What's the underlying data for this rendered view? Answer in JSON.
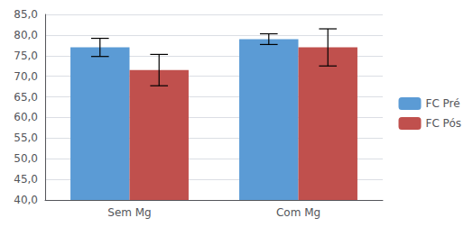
{
  "chart_data": {
    "type": "bar",
    "categories": [
      "Sem Mg",
      "Com Mg"
    ],
    "series": [
      {
        "name": "FC Pré",
        "color": "#5B9BD5",
        "values": [
          77.0,
          79.0
        ],
        "errors": [
          2.2,
          1.3
        ]
      },
      {
        "name": "FC Pós",
        "color": "#C0504D",
        "values": [
          71.5,
          77.0
        ],
        "errors": [
          3.8,
          4.5
        ]
      }
    ],
    "ylim": [
      40.0,
      85.0
    ],
    "yticks": [
      {
        "value": 40.0,
        "label": "40,0"
      },
      {
        "value": 45.0,
        "label": "45,0"
      },
      {
        "value": 50.0,
        "label": "50,0"
      },
      {
        "value": 55.0,
        "label": "55,0"
      },
      {
        "value": 60.0,
        "label": "60,0"
      },
      {
        "value": 65.0,
        "label": "65,0"
      },
      {
        "value": 70.0,
        "label": "70,0"
      },
      {
        "value": 75.0,
        "label": "75,0"
      },
      {
        "value": 80.0,
        "label": "80,0"
      },
      {
        "value": 85.0,
        "label": "85,0"
      }
    ],
    "grid": true,
    "legend": "right"
  }
}
